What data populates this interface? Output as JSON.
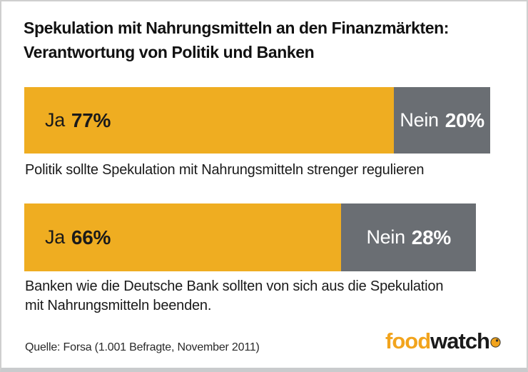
{
  "title": {
    "line1": "Spekulation mit Nahrungsmitteln an den Finanzmärkten:",
    "line2": "Verantwortung von Politik und Banken"
  },
  "chart_data": {
    "type": "bar",
    "orientation": "horizontal-stacked",
    "unit": "percent",
    "xlim": [
      0,
      100
    ],
    "series_names": [
      "Ja",
      "Nein"
    ],
    "colors": {
      "ja": "#EFAD21",
      "nein": "#6A6E73"
    },
    "rows": [
      {
        "caption": "Politik sollte Spekulation mit Nahrungsmitteln strenger regulieren",
        "ja": 77,
        "nein": 20,
        "ja_label": "Ja",
        "ja_value_text": "77%",
        "nein_label": "Nein",
        "nein_value_text": "20%"
      },
      {
        "caption_line1": "Banken wie die Deutsche Bank sollten von sich aus die Spekulation",
        "caption_line2": "mit Nahrungsmitteln beenden.",
        "ja": 66,
        "nein": 28,
        "ja_label": "Ja",
        "ja_value_text": "66%",
        "nein_label": "Nein",
        "nein_value_text": "28%"
      }
    ]
  },
  "footer": {
    "source": "Quelle: Forsa (1.001 Befragte, November 2011)"
  },
  "logo": {
    "part1": "food",
    "part2": "watch",
    "color_part1": "#F2A41D",
    "color_part2": "#1A1A1A"
  }
}
